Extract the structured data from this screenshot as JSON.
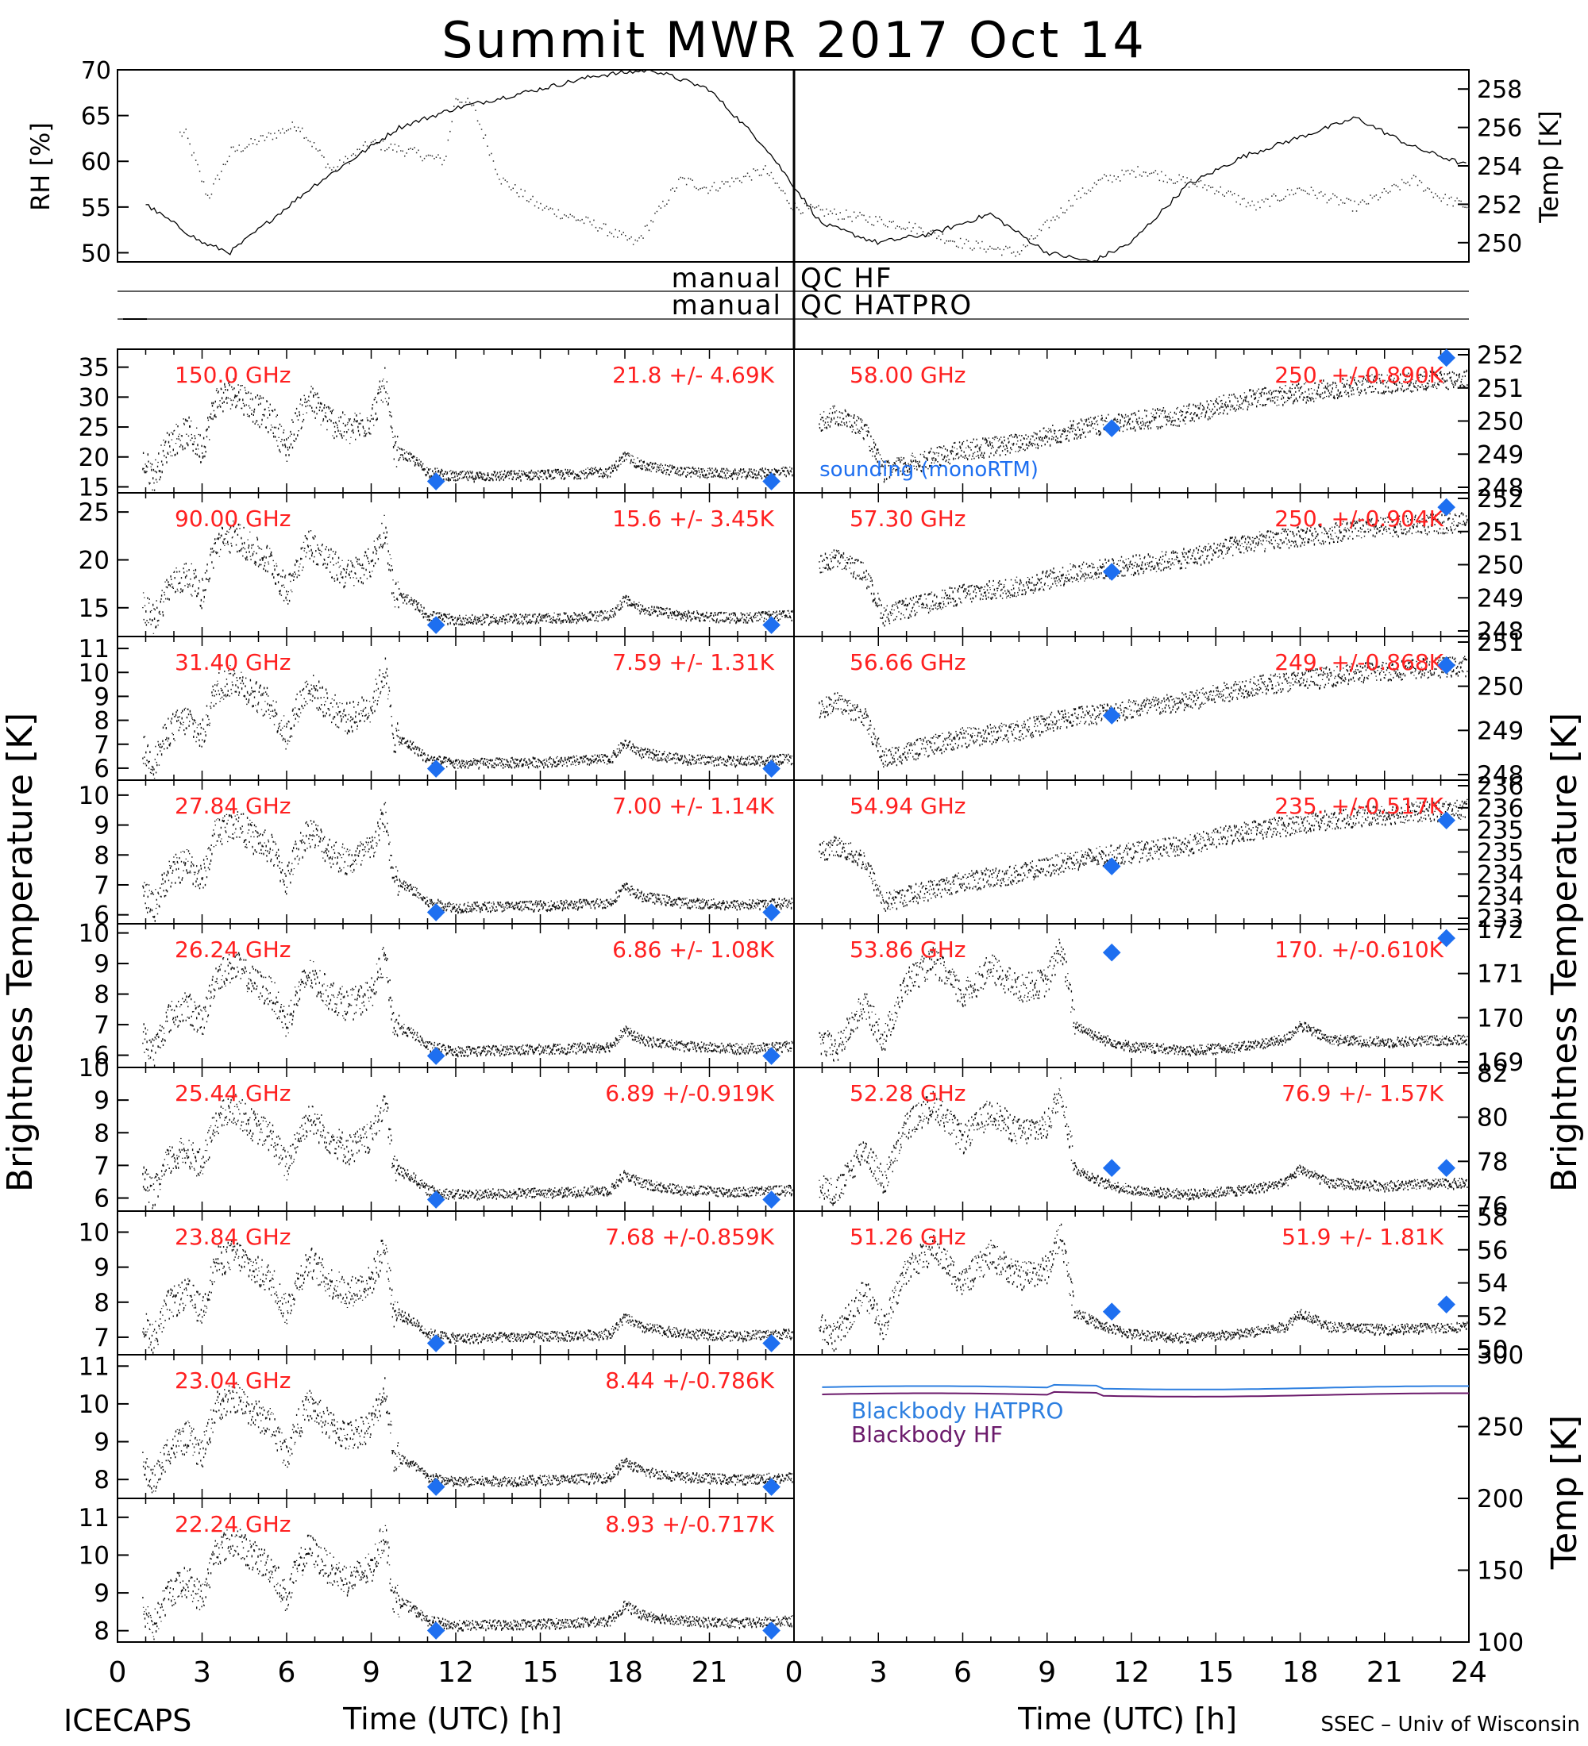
{
  "title": "Summit MWR 2017 Oct 14",
  "footer": {
    "left": "ICECAPS",
    "right": "SSEC – Univ of Wisconsin"
  },
  "colors": {
    "trace": "#000000",
    "label": "#ff2020",
    "marker": "#1e6ff0",
    "bb_hatpro": "#2d7fe0",
    "bb_hf": "#6b1a6b"
  },
  "y_labels": {
    "left": "Brightness Temperature [K]",
    "right_bt": "Brightness Temperature [K]",
    "right_temp": "Temp [K]",
    "rh": "RH [%]",
    "temp": "Temp [K]"
  },
  "qc": {
    "row1": {
      "left": "manual",
      "right": "QC HF"
    },
    "row2": {
      "left": "manual",
      "right": "QC HATPRO"
    }
  },
  "legend_note": "sounding (monoRTM)",
  "bb_labels": [
    "Blackbody HATPRO",
    "Blackbody HF"
  ],
  "chart_data": {
    "type": "scatter",
    "x_ticks": [
      "0",
      "3",
      "6",
      "9",
      "12",
      "15",
      "18",
      "21",
      "0",
      "3",
      "6",
      "9",
      "12",
      "15",
      "18",
      "21",
      "24"
    ],
    "xlabel": "Time (UTC) [h]",
    "rh": {
      "yticks": [
        "50",
        "55",
        "60",
        "65",
        "70"
      ],
      "ylim": [
        49,
        70
      ]
    },
    "temp": {
      "yticks": [
        "250",
        "252",
        "254",
        "256",
        "258"
      ],
      "ylim": [
        249,
        259
      ]
    },
    "left_panels": [
      {
        "freq": "150.0 GHz",
        "stat": "21.8 +/-  4.69K",
        "yticks": [
          "15",
          "20",
          "25",
          "30",
          "35"
        ],
        "ylim": [
          14,
          38
        ]
      },
      {
        "freq": "90.00 GHz",
        "stat": "15.6 +/-  3.45K",
        "yticks": [
          "15",
          "20",
          "25"
        ],
        "ylim": [
          12,
          27
        ]
      },
      {
        "freq": "31.40 GHz",
        "stat": "7.59 +/- 1.31K",
        "yticks": [
          "6",
          "7",
          "8",
          "9",
          "10",
          "11"
        ],
        "ylim": [
          5.5,
          11.5
        ]
      },
      {
        "freq": "27.84 GHz",
        "stat": "7.00 +/- 1.14K",
        "yticks": [
          "6",
          "7",
          "8",
          "9",
          "10"
        ],
        "ylim": [
          5.7,
          10.5
        ]
      },
      {
        "freq": "26.24 GHz",
        "stat": "6.86 +/- 1.08K",
        "yticks": [
          "6",
          "7",
          "8",
          "9",
          "10"
        ],
        "ylim": [
          5.6,
          10.3
        ]
      },
      {
        "freq": "25.44 GHz",
        "stat": "6.89 +/-0.919K",
        "yticks": [
          "6",
          "7",
          "8",
          "9",
          "10"
        ],
        "ylim": [
          5.6,
          10
        ]
      },
      {
        "freq": "23.84 GHz",
        "stat": "7.68 +/-0.859K",
        "yticks": [
          "7",
          "8",
          "9",
          "10"
        ],
        "ylim": [
          6.5,
          10.6
        ]
      },
      {
        "freq": "23.04 GHz",
        "stat": "8.44 +/-0.786K",
        "yticks": [
          "8",
          "9",
          "10",
          "11"
        ],
        "ylim": [
          7.5,
          11.3
        ]
      },
      {
        "freq": "22.24 GHz",
        "stat": "8.93 +/-0.717K",
        "yticks": [
          "8",
          "9",
          "10",
          "11"
        ],
        "ylim": [
          7.7,
          11.5
        ]
      }
    ],
    "right_panels": [
      {
        "freq": "58.00 GHz",
        "stat": "250. +/-0.890K",
        "yticks": [
          "248",
          "249",
          "250",
          "251",
          "252"
        ],
        "ylim": [
          247.8,
          252.3
        ]
      },
      {
        "freq": "57.30 GHz",
        "stat": "250. +/-0.904K",
        "yticks": [
          "248",
          "249",
          "250",
          "251",
          "252"
        ],
        "ylim": [
          247.8,
          252.1
        ]
      },
      {
        "freq": "56.66 GHz",
        "stat": "249. +/-0.868K",
        "yticks": [
          "248",
          "249",
          "250",
          "251"
        ],
        "ylim": [
          247.8,
          251.5
        ]
      },
      {
        "freq": "54.94 GHz",
        "stat": "235. +/-0.517K",
        "yticks": [
          "233",
          "234",
          "234",
          "235",
          "235",
          "236",
          "236"
        ],
        "ylim": [
          233,
          236.5
        ]
      },
      {
        "freq": "53.86 GHz",
        "stat": "170. +/-0.610K",
        "yticks": [
          "169",
          "170",
          "171",
          "172"
        ],
        "ylim": [
          168.8,
          172.5
        ]
      },
      {
        "freq": "52.28 GHz",
        "stat": "76.9 +/- 1.57K",
        "yticks": [
          "76",
          "78",
          "80",
          "82"
        ],
        "ylim": [
          75,
          82
        ]
      },
      {
        "freq": "51.26 GHz",
        "stat": "51.9 +/- 1.81K",
        "yticks": [
          "50",
          "52",
          "54",
          "56",
          "58"
        ],
        "ylim": [
          50,
          58
        ]
      }
    ],
    "bb": {
      "yticks": [
        "100",
        "150",
        "200",
        "250",
        "300"
      ],
      "ylim": [
        100,
        300
      ],
      "series": [
        {
          "name": "Blackbody HATPRO",
          "value": 277
        },
        {
          "name": "Blackbody HF",
          "value": 272
        }
      ]
    },
    "sounding_times_h": [
      11.3,
      23.2
    ]
  }
}
